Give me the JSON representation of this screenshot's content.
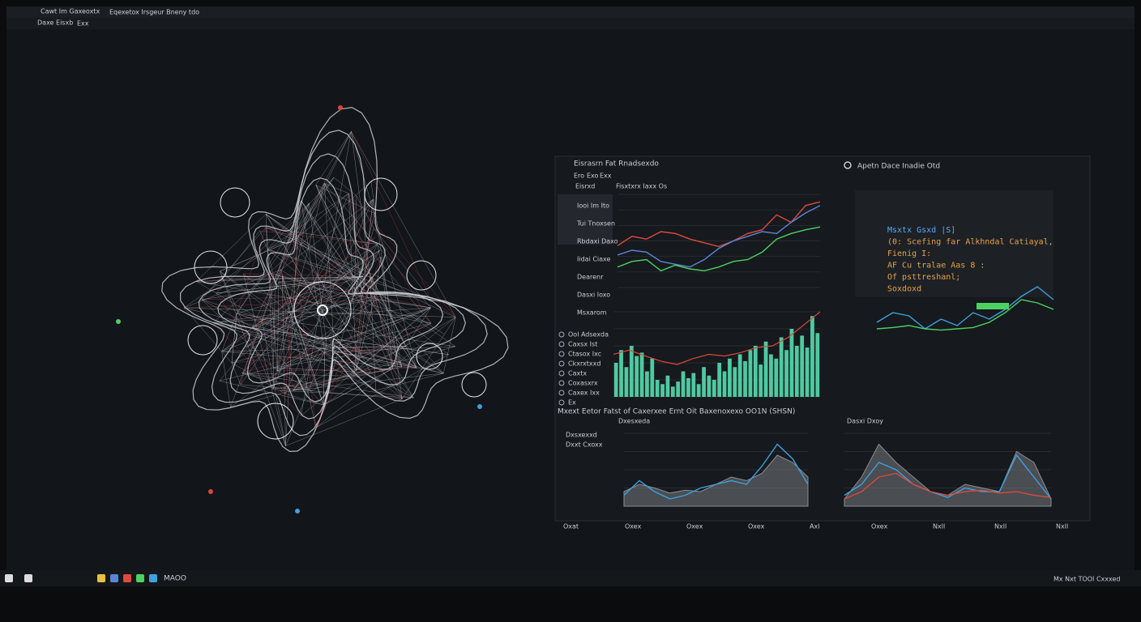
{
  "window": {
    "tab": "Cawt Im Gaxeoxtx",
    "tab2": "Eqexetox Irsgeur Bneny tdo",
    "address": "Daxe Eisxb",
    "address2": "Exx"
  },
  "dashboard": {
    "title": "Eisrasrn Fat Rnadsexdo",
    "tabs": [
      "Ero",
      "Exo",
      "Exx"
    ],
    "menu_head": "Eisrxd",
    "menu": [
      "Iooi Im Ito",
      "Tui Tnoxsen",
      "Rbdaxi Daxo",
      "Iidai Ciaxe",
      "Dearenr",
      "Dasxi Ioxo",
      "Msxarom"
    ],
    "list": [
      "Ool Adsexda",
      "Caxsx Ist",
      "Ctasox Ixc",
      "Ckxrxtxxd",
      "Caxtx",
      "Coxasxrx",
      "Caxex Ixx",
      "Ex"
    ],
    "line_chart": {
      "type": "line",
      "title": "Fisxtxrx Iaxx Os",
      "series": [
        {
          "color": "#e04a3c",
          "values": [
            45,
            55,
            52,
            60,
            58,
            52,
            48,
            44,
            50,
            58,
            62,
            78,
            70,
            88,
            92
          ]
        },
        {
          "color": "#5b86d8",
          "values": [
            35,
            40,
            38,
            28,
            25,
            22,
            30,
            42,
            50,
            55,
            60,
            58,
            70,
            80,
            88
          ]
        },
        {
          "color": "#4bd160",
          "values": [
            22,
            28,
            30,
            18,
            24,
            20,
            18,
            22,
            28,
            30,
            38,
            52,
            58,
            62,
            65
          ]
        }
      ]
    },
    "bar_chart": {
      "type": "bar",
      "color": "#4fc9a0",
      "values": [
        40,
        55,
        35,
        60,
        48,
        52,
        30,
        45,
        20,
        15,
        25,
        12,
        18,
        30,
        22,
        28,
        15,
        35,
        25,
        20,
        40,
        30,
        45,
        35,
        50,
        42,
        55,
        60,
        38,
        65,
        50,
        45,
        70,
        55,
        80,
        60,
        72,
        58,
        95,
        75
      ],
      "line": {
        "color": "#d84a3a",
        "values": [
          50,
          55,
          48,
          42,
          38,
          45,
          50,
          48,
          52,
          58,
          60,
          70,
          85,
          100
        ]
      }
    },
    "area_title": "Mxext Eetor Fatst of Caxerxee Ernt Oit Baxenoxexo OO1N (SHSN)",
    "area_side": [
      "Dxsxexxd",
      "Dxxt Cxoxx"
    ],
    "area_left": {
      "type": "area",
      "label": "Dxesxeda",
      "series": [
        {
          "color": "#8a8f94",
          "values": [
            20,
            30,
            25,
            18,
            22,
            20,
            30,
            40,
            35,
            45,
            70,
            60,
            40
          ]
        },
        {
          "color": "#3fa0e0",
          "values": [
            15,
            35,
            20,
            10,
            15,
            25,
            30,
            35,
            30,
            55,
            85,
            65,
            30
          ]
        }
      ]
    },
    "area_right": {
      "type": "area",
      "label": "Dasxi Dxoy",
      "series": [
        {
          "color": "#8a8f94",
          "values": [
            10,
            40,
            85,
            60,
            40,
            20,
            15,
            30,
            25,
            20,
            75,
            60,
            10
          ]
        },
        {
          "color": "#3fa0e0",
          "values": [
            15,
            30,
            60,
            50,
            30,
            20,
            12,
            25,
            20,
            20,
            70,
            40,
            10
          ]
        },
        {
          "color": "#d84a3a",
          "values": [
            10,
            20,
            40,
            45,
            30,
            20,
            15,
            20,
            22,
            18,
            20,
            15,
            12
          ]
        }
      ]
    },
    "x_labels": [
      "Oxat",
      "Oxex",
      "Oxex",
      "Oxex",
      "Axl",
      "Oxex",
      "Nxll",
      "Nxll",
      "Nxll"
    ]
  },
  "code_panel": {
    "title": "Apetn Dace Inadie Otd",
    "lines": [
      "Msxtx Gsxd |S]",
      "(0: Scefing far Alkhndal Catiayal,",
      "Fienig I:",
      "AF Cu tralae Aas 8 :",
      "Of psttreshanl;",
      "Soxdoxd"
    ],
    "chart": {
      "type": "line",
      "series": [
        {
          "color": "#3fa0e0",
          "values": [
            40,
            55,
            50,
            30,
            45,
            35,
            55,
            45,
            60,
            80,
            95,
            75
          ]
        },
        {
          "color": "#4bd160",
          "values": [
            30,
            32,
            35,
            30,
            28,
            30,
            32,
            40,
            55,
            75,
            70,
            60
          ]
        }
      ]
    }
  },
  "taskbar": {
    "label": "MAOO",
    "tray": "Mx Nxt TOOI Cxxxed"
  }
}
